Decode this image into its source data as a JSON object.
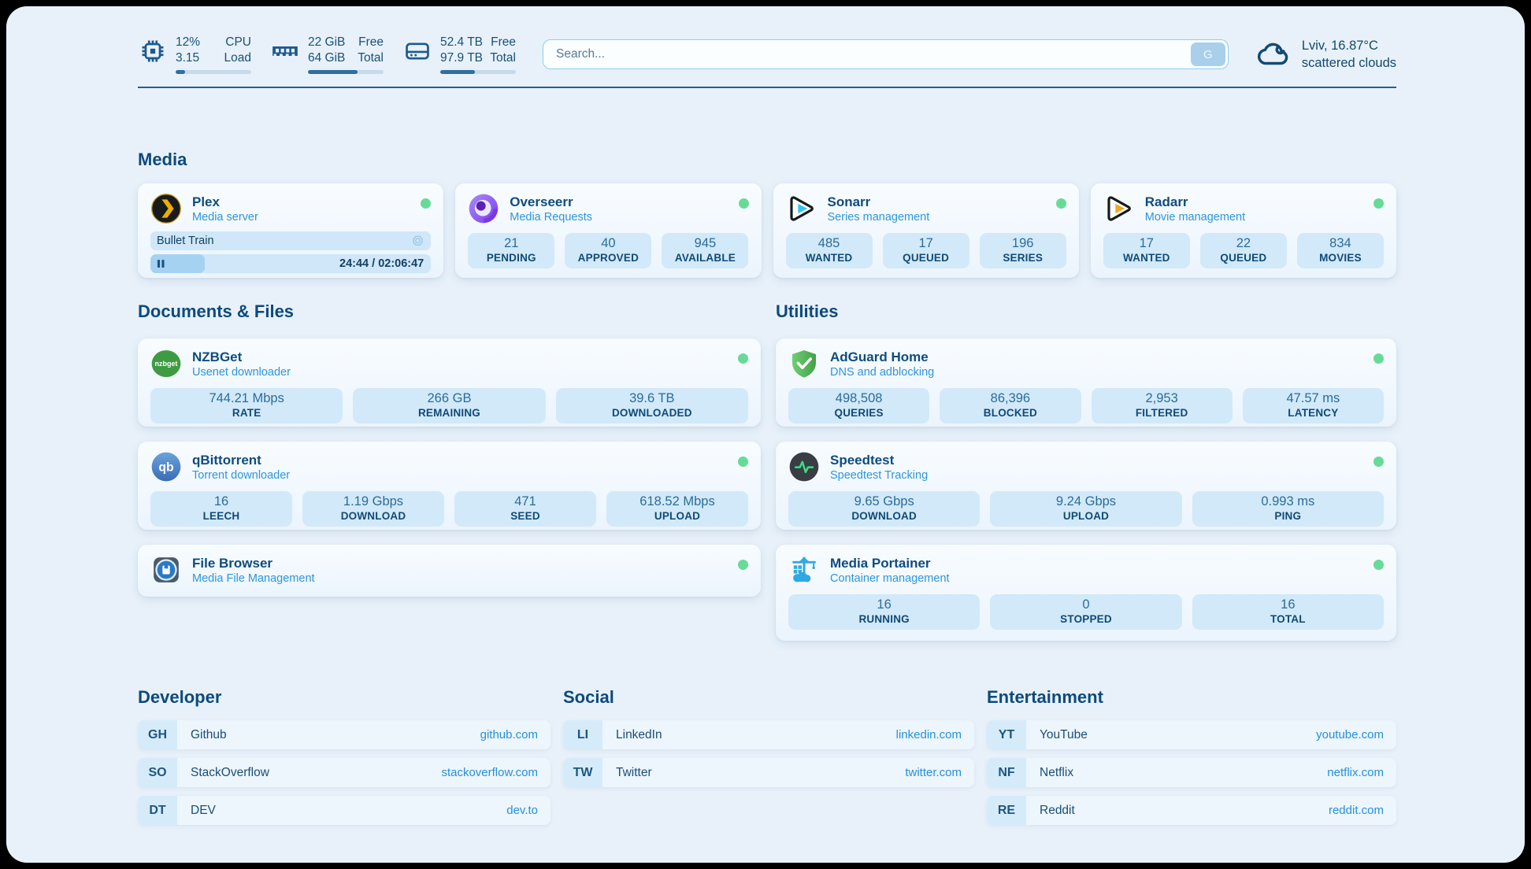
{
  "header": {
    "stats": [
      {
        "name": "cpu",
        "values": [
          "12%",
          "3.15"
        ],
        "labels": [
          "CPU",
          "Load"
        ],
        "progress_pct": 12
      },
      {
        "name": "memory",
        "values": [
          "22 GiB",
          "64 GiB"
        ],
        "labels": [
          "Free",
          "Total"
        ],
        "progress_pct": 66
      },
      {
        "name": "storage",
        "values": [
          "52.4 TB",
          "97.9 TB"
        ],
        "labels": [
          "Free",
          "Total"
        ],
        "progress_pct": 46
      }
    ],
    "search": {
      "placeholder": "Search...",
      "button_label": "G"
    },
    "weather": {
      "location_temp": "Lviv, 16.87°C",
      "condition": "scattered clouds"
    }
  },
  "sections": {
    "media": "Media",
    "documents": "Documents & Files",
    "utilities": "Utilities",
    "developer": "Developer",
    "social": "Social",
    "entertainment": "Entertainment"
  },
  "apps": {
    "plex": {
      "name": "Plex",
      "desc": "Media server",
      "now_playing": "Bullet Train",
      "time_display": "24:44 / 02:06:47",
      "progress_pct": 19.5
    },
    "overseerr": {
      "name": "Overseerr",
      "desc": "Media Requests",
      "stats": [
        {
          "v": "21",
          "l": "PENDING"
        },
        {
          "v": "40",
          "l": "APPROVED"
        },
        {
          "v": "945",
          "l": "AVAILABLE"
        }
      ]
    },
    "sonarr": {
      "name": "Sonarr",
      "desc": "Series management",
      "stats": [
        {
          "v": "485",
          "l": "WANTED"
        },
        {
          "v": "17",
          "l": "QUEUED"
        },
        {
          "v": "196",
          "l": "SERIES"
        }
      ]
    },
    "radarr": {
      "name": "Radarr",
      "desc": "Movie management",
      "stats": [
        {
          "v": "17",
          "l": "WANTED"
        },
        {
          "v": "22",
          "l": "QUEUED"
        },
        {
          "v": "834",
          "l": "MOVIES"
        }
      ]
    },
    "nzbget": {
      "name": "NZBGet",
      "desc": "Usenet downloader",
      "stats": [
        {
          "v": "744.21 Mbps",
          "l": "RATE"
        },
        {
          "v": "266 GB",
          "l": "REMAINING"
        },
        {
          "v": "39.6 TB",
          "l": "DOWNLOADED"
        }
      ]
    },
    "qbittorrent": {
      "name": "qBittorrent",
      "desc": "Torrent downloader",
      "stats": [
        {
          "v": "16",
          "l": "LEECH"
        },
        {
          "v": "1.19 Gbps",
          "l": "DOWNLOAD"
        },
        {
          "v": "471",
          "l": "SEED"
        },
        {
          "v": "618.52 Mbps",
          "l": "UPLOAD"
        }
      ]
    },
    "filebrowser": {
      "name": "File Browser",
      "desc": "Media File Management"
    },
    "adguard": {
      "name": "AdGuard Home",
      "desc": "DNS and adblocking",
      "stats": [
        {
          "v": "498,508",
          "l": "QUERIES"
        },
        {
          "v": "86,396",
          "l": "BLOCKED"
        },
        {
          "v": "2,953",
          "l": "FILTERED"
        },
        {
          "v": "47.57 ms",
          "l": "LATENCY"
        }
      ]
    },
    "speedtest": {
      "name": "Speedtest",
      "desc": "Speedtest Tracking",
      "stats": [
        {
          "v": "9.65 Gbps",
          "l": "DOWNLOAD"
        },
        {
          "v": "9.24 Gbps",
          "l": "UPLOAD"
        },
        {
          "v": "0.993 ms",
          "l": "PING"
        }
      ]
    },
    "portainer": {
      "name": "Media Portainer",
      "desc": "Container management",
      "stats": [
        {
          "v": "16",
          "l": "RUNNING"
        },
        {
          "v": "0",
          "l": "STOPPED"
        },
        {
          "v": "16",
          "l": "TOTAL"
        }
      ]
    }
  },
  "links": {
    "developer": [
      {
        "abbr": "GH",
        "name": "Github",
        "url": "github.com"
      },
      {
        "abbr": "SO",
        "name": "StackOverflow",
        "url": "stackoverflow.com"
      },
      {
        "abbr": "DT",
        "name": "DEV",
        "url": "dev.to"
      }
    ],
    "social": [
      {
        "abbr": "LI",
        "name": "LinkedIn",
        "url": "linkedin.com"
      },
      {
        "abbr": "TW",
        "name": "Twitter",
        "url": "twitter.com"
      }
    ],
    "entertainment": [
      {
        "abbr": "YT",
        "name": "YouTube",
        "url": "youtube.com"
      },
      {
        "abbr": "NF",
        "name": "Netflix",
        "url": "netflix.com"
      },
      {
        "abbr": "RE",
        "name": "Reddit",
        "url": "reddit.com"
      }
    ]
  },
  "colors": {
    "accent_blue": "#2491db",
    "status_green": "#68da97",
    "navy": "#0d4a7b",
    "pill_blue": "#d2e9f9"
  }
}
